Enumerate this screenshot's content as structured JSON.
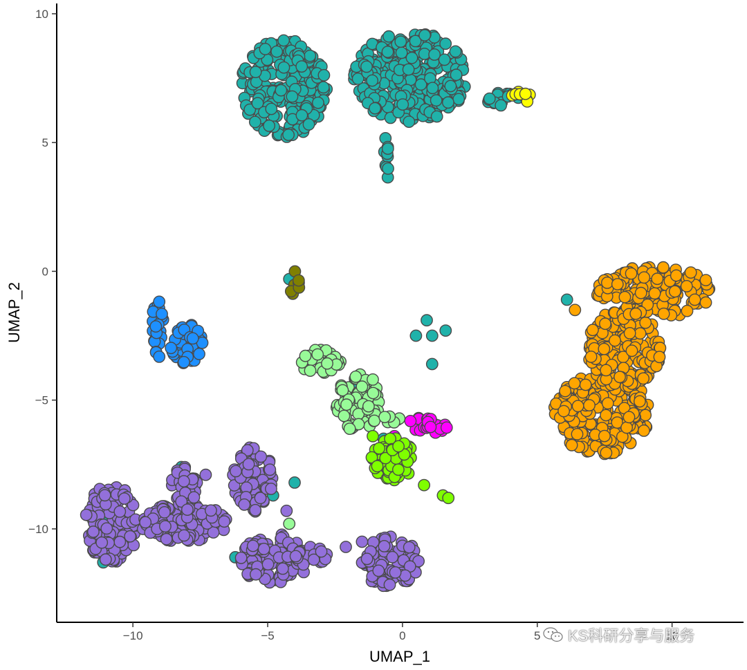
{
  "chart_data": {
    "type": "scatter",
    "xlabel": "UMAP_1",
    "ylabel": "UMAP_2",
    "xlim": [
      -12.8,
      12.6
    ],
    "ylim": [
      -13.6,
      10.4
    ],
    "xticks": [
      -10,
      -5,
      0,
      5,
      10
    ],
    "yticks": [
      10,
      5,
      0,
      -5,
      -10
    ],
    "xtick_labels": [
      "−10",
      "−5",
      "0",
      "5",
      "10"
    ],
    "ytick_labels": [
      "10",
      "5",
      "0",
      "−5",
      "−10"
    ],
    "grid": false,
    "legend": "none",
    "marker_edge_color": "#4a4a4a",
    "series": [
      {
        "color": "#20b2aa",
        "clusters": [
          {
            "x": [
              -6.0,
              -2.8
            ],
            "y": [
              5.2,
              9.0
            ]
          },
          {
            "x": [
              -1.8,
              2.4
            ],
            "y": [
              5.8,
              9.3
            ]
          },
          {
            "x": [
              -0.7,
              -0.5
            ],
            "y": [
              2.9,
              5.4
            ]
          },
          {
            "x": [
              3.1,
              4.3
            ],
            "y": [
              6.4,
              7.0
            ]
          }
        ],
        "points": [
          [
            0.5,
            -2.5
          ],
          [
            0.9,
            -1.9
          ],
          [
            1.1,
            -2.5
          ],
          [
            1.6,
            -2.3
          ],
          [
            1.1,
            -3.6
          ],
          [
            -6.2,
            -11.1
          ],
          [
            -4.5,
            -11.0
          ],
          [
            -10.8,
            -8.7
          ],
          [
            -11.0,
            -9.6
          ],
          [
            -8.2,
            -7.6
          ],
          [
            -4.8,
            -8.7
          ],
          [
            -1.8,
            -4.4
          ],
          [
            -0.7,
            -6.5
          ],
          [
            7.8,
            -2.2
          ],
          [
            6.3,
            -6.5
          ],
          [
            9.5,
            -3.5
          ],
          [
            -4.2,
            -0.3
          ],
          [
            6.1,
            -1.1
          ],
          [
            -0.5,
            -11.6
          ],
          [
            -4.0,
            -8.2
          ],
          [
            -11.1,
            -11.3
          ]
        ]
      },
      {
        "color": "#ffa500",
        "clusters": [
          {
            "x": [
              5.6,
              9.2
            ],
            "y": [
              -7.1,
              -4.0
            ]
          },
          {
            "x": [
              6.8,
              9.6
            ],
            "y": [
              -4.5,
              -1.5
            ]
          },
          {
            "x": [
              7.2,
              11.5
            ],
            "y": [
              -1.8,
              0.2
            ]
          }
        ],
        "points": [
          [
            0.1,
            -6.8
          ],
          [
            6.4,
            -1.5
          ]
        ]
      },
      {
        "color": "#9370db",
        "clusters": [
          {
            "x": [
              -11.8,
              -9.8
            ],
            "y": [
              -11.3,
              -8.3
            ]
          },
          {
            "x": [
              -9.8,
              -6.5
            ],
            "y": [
              -10.5,
              -9.0
            ]
          },
          {
            "x": [
              -8.6,
              -7.6
            ],
            "y": [
              -9.3,
              -7.6
            ]
          },
          {
            "x": [
              -6.3,
              -4.8
            ],
            "y": [
              -9.4,
              -6.8
            ]
          },
          {
            "x": [
              -6.0,
              -3.5
            ],
            "y": [
              -12.2,
              -10.2
            ]
          },
          {
            "x": [
              -4.3,
              -2.8
            ],
            "y": [
              -11.5,
              -10.6
            ]
          },
          {
            "x": [
              -1.5,
              0.6
            ],
            "y": [
              -12.3,
              -10.3
            ]
          },
          {
            "x": [
              -1.0,
              0.0
            ],
            "y": [
              -8.0,
              -6.9
            ]
          }
        ],
        "points": [
          [
            -7.3,
            -7.9
          ],
          [
            -4.3,
            -9.3
          ],
          [
            -2.1,
            -10.7
          ],
          [
            -1.5,
            -10.5
          ],
          [
            -9.1,
            -10.0
          ],
          [
            -8.8,
            -9.9
          ]
        ]
      },
      {
        "color": "#1e90ff",
        "clusters": [
          {
            "x": [
              -9.3,
              -8.8
            ],
            "y": [
              -3.4,
              -1.0
            ]
          },
          {
            "x": [
              -8.6,
              -7.4
            ],
            "y": [
              -3.8,
              -2.0
            ]
          }
        ],
        "points": [
          [
            0.6,
            -5.7
          ],
          [
            0.9,
            -6.0
          ]
        ]
      },
      {
        "color": "#98fb98",
        "clusters": [
          {
            "x": [
              -3.8,
              -2.3
            ],
            "y": [
              -4.0,
              -3.0
            ]
          },
          {
            "x": [
              -2.5,
              -0.8
            ],
            "y": [
              -6.2,
              -4.0
            ]
          },
          {
            "x": [
              -0.9,
              -0.1
            ],
            "y": [
              -5.9,
              -5.5
            ]
          }
        ],
        "points": [
          [
            -1.1,
            -4.2
          ],
          [
            -4.2,
            -9.8
          ]
        ]
      },
      {
        "color": "#ff00ff",
        "clusters": [
          {
            "x": [
              0.0,
              1.7
            ],
            "y": [
              -6.3,
              -5.7
            ]
          }
        ],
        "points": [
          [
            -0.3,
            -6.4
          ]
        ]
      },
      {
        "color": "#7fff00",
        "clusters": [
          {
            "x": [
              -1.2,
              0.4
            ],
            "y": [
              -8.2,
              -6.4
            ]
          }
        ],
        "points": [
          [
            0.8,
            -8.3
          ],
          [
            1.5,
            -8.7
          ],
          [
            1.7,
            -8.8
          ],
          [
            -1.1,
            -6.4
          ]
        ]
      },
      {
        "color": "#808000",
        "clusters": [
          {
            "x": [
              -4.2,
              -3.8
            ],
            "y": [
              -0.9,
              0.0
            ]
          }
        ],
        "points": []
      },
      {
        "color": "#ffff00",
        "clusters": [
          {
            "x": [
              4.0,
              4.8
            ],
            "y": [
              6.5,
              7.0
            ]
          }
        ],
        "points": []
      }
    ]
  },
  "watermark": {
    "text": "KS科研分享与服务",
    "icon": "wechat-icon"
  }
}
